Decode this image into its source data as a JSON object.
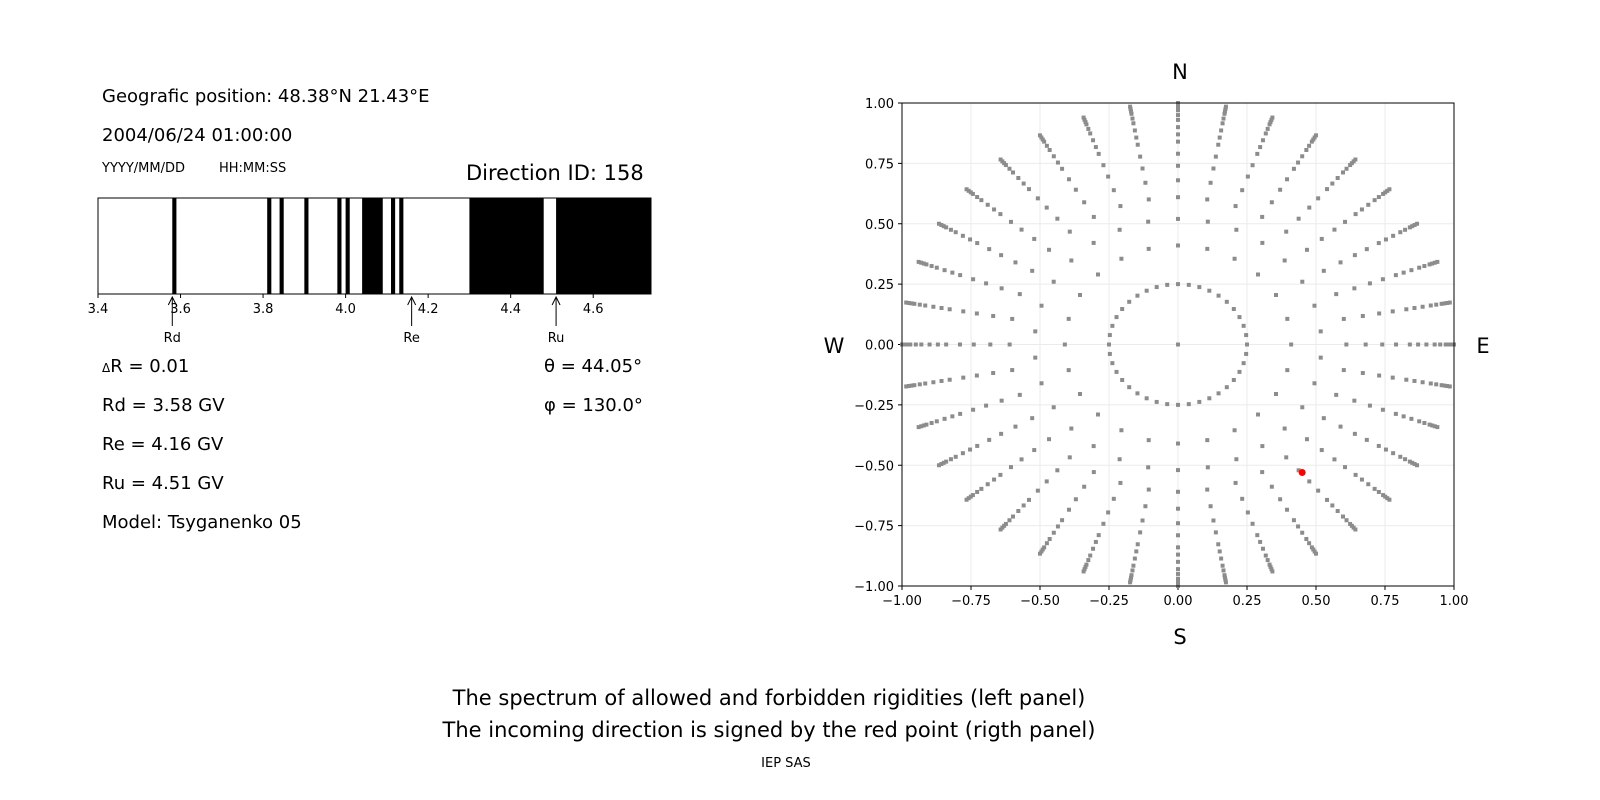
{
  "left_panel": {
    "position": "Geografic position: 48.38°N 21.43°E",
    "datetime": "2004/06/24 01:00:00",
    "date_format": "YYYY/MM/DD",
    "time_format": "HH:MM:SS",
    "direction": "Direction ID: 158",
    "delta_r": "R = 0.01",
    "delta_symbol": "Δ",
    "rd": "Rd = 3.58 GV",
    "re": "Re = 4.16 GV",
    "ru": "Ru = 4.51 GV",
    "model": "Model: Tsyganenko 05",
    "theta": "θ = 44.05°",
    "phi": "φ = 130.0°"
  },
  "captions": {
    "line1": "The spectrum of allowed and forbidden rigidities (left panel)",
    "line2": "The incoming direction is signed by the red point (rigth panel)",
    "credit": "IEP SAS"
  },
  "chart_data": [
    {
      "type": "bar",
      "xlim": [
        3.4,
        4.74
      ],
      "xticks": [
        "3.4",
        "3.6",
        "3.8",
        "4.0",
        "4.2",
        "4.4",
        "4.6"
      ],
      "forbidden_intervals": [
        [
          3.58,
          3.59
        ],
        [
          3.81,
          3.82
        ],
        [
          3.84,
          3.85
        ],
        [
          3.9,
          3.91
        ],
        [
          3.98,
          3.99
        ],
        [
          4.0,
          4.01
        ],
        [
          4.04,
          4.09
        ],
        [
          4.11,
          4.12
        ],
        [
          4.13,
          4.14
        ],
        [
          4.3,
          4.48
        ],
        [
          4.51,
          4.74
        ]
      ],
      "markers": [
        {
          "label": "Rd",
          "x": 3.58
        },
        {
          "label": "Re",
          "x": 4.16
        },
        {
          "label": "Ru",
          "x": 4.51
        }
      ],
      "colors": {
        "forbidden": "#000000",
        "allowed": "#ffffff"
      }
    },
    {
      "type": "scatter",
      "xlim": [
        -1,
        1
      ],
      "ylim": [
        -1,
        1
      ],
      "xticks": [
        "−1.00",
        "−0.75",
        "−0.50",
        "−0.25",
        "0.00",
        "0.25",
        "0.50",
        "0.75",
        "1.00"
      ],
      "yticks": [
        "1.00",
        "0.75",
        "0.50",
        "0.25",
        "0.00",
        "−0.25",
        "−0.50",
        "−0.75",
        "−1.00"
      ],
      "grid": true,
      "compass": {
        "n": "N",
        "s": "S",
        "w": "W",
        "e": "E"
      },
      "grid_points": {
        "center": [
          0,
          0
        ],
        "rings": [
          {
            "r": 0.25,
            "count": 40
          },
          {
            "r": 0.41,
            "count": 24
          },
          {
            "r": 0.52,
            "count": 30
          },
          {
            "r": 0.61,
            "count": 36
          },
          {
            "r": 0.68,
            "count": 36
          },
          {
            "r": 0.74,
            "count": 36
          },
          {
            "r": 0.79,
            "count": 36
          },
          {
            "r": 0.84,
            "count": 36
          },
          {
            "r": 0.87,
            "count": 36
          },
          {
            "r": 0.9,
            "count": 36
          },
          {
            "r": 0.93,
            "count": 36
          },
          {
            "r": 0.95,
            "count": 36
          },
          {
            "r": 0.97,
            "count": 36
          },
          {
            "r": 0.98,
            "count": 36
          },
          {
            "r": 0.99,
            "count": 36
          },
          {
            "r": 1.0,
            "count": 36
          }
        ],
        "color": "#8c8c8c"
      },
      "incoming_direction": {
        "x": 0.45,
        "y": -0.53,
        "color": "#ff0000"
      }
    }
  ]
}
